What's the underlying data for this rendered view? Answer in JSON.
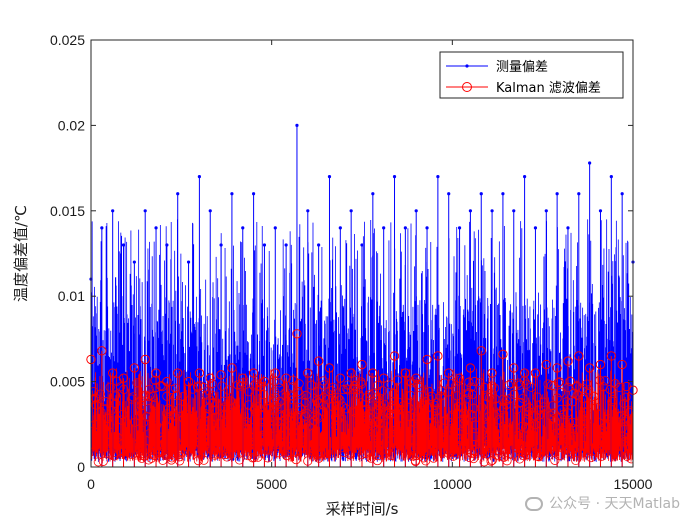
{
  "chart_data": {
    "type": "line",
    "xlabel": "采样时间/s",
    "ylabel": "温度偏差值/℃",
    "xlim": [
      0,
      15000
    ],
    "ylim": [
      0,
      0.025
    ],
    "xticks": [
      "0",
      "5000",
      "10000",
      "15000"
    ],
    "yticks": [
      "0",
      "0.005",
      "0.01",
      "0.015",
      "0.02",
      "0.025"
    ],
    "grid": false,
    "legend_position": "top-right",
    "series": [
      {
        "name": "测量偏差",
        "color": "#0000ff",
        "marker": "point",
        "x": [
          0,
          300,
          600,
          900,
          1200,
          1500,
          1800,
          2100,
          2400,
          2700,
          3000,
          3300,
          3600,
          3900,
          4200,
          4500,
          4800,
          5100,
          5400,
          5700,
          6000,
          6300,
          6600,
          6900,
          7200,
          7500,
          7800,
          8100,
          8400,
          8700,
          9000,
          9300,
          9600,
          9900,
          10200,
          10500,
          10800,
          11100,
          11400,
          11700,
          12000,
          12300,
          12600,
          12900,
          13200,
          13500,
          13800,
          14100,
          14400,
          14700,
          15000
        ],
        "y": [
          0.011,
          0.014,
          0.015,
          0.013,
          0.012,
          0.015,
          0.014,
          0.013,
          0.016,
          0.012,
          0.017,
          0.015,
          0.013,
          0.016,
          0.014,
          0.016,
          0.013,
          0.014,
          0.013,
          0.02,
          0.015,
          0.013,
          0.017,
          0.014,
          0.015,
          0.013,
          0.016,
          0.014,
          0.017,
          0.014,
          0.015,
          0.014,
          0.017,
          0.016,
          0.014,
          0.015,
          0.016,
          0.015,
          0.016,
          0.015,
          0.017,
          0.014,
          0.015,
          0.016,
          0.014,
          0.016,
          0.0178,
          0.015,
          0.017,
          0.016,
          0.012
        ]
      },
      {
        "name": "Kalman 滤波偏差",
        "color": "#ff0000",
        "marker": "circle",
        "x": [
          0,
          300,
          600,
          900,
          1200,
          1500,
          1800,
          2100,
          2400,
          2700,
          3000,
          3300,
          3600,
          3900,
          4200,
          4500,
          4800,
          5100,
          5400,
          5700,
          6000,
          6300,
          6600,
          6900,
          7200,
          7500,
          7800,
          8100,
          8400,
          8700,
          9000,
          9300,
          9600,
          9900,
          10200,
          10500,
          10800,
          11100,
          11400,
          11700,
          12000,
          12300,
          12600,
          12900,
          13200,
          13500,
          13800,
          14100,
          14400,
          14700,
          15000
        ],
        "y": [
          0.0063,
          0.0068,
          0.0055,
          0.0052,
          0.0058,
          0.0063,
          0.0055,
          0.005,
          0.0055,
          0.005,
          0.0055,
          0.0052,
          0.0054,
          0.0058,
          0.0052,
          0.0055,
          0.005,
          0.0055,
          0.0052,
          0.0078,
          0.0055,
          0.0062,
          0.0058,
          0.0052,
          0.0055,
          0.006,
          0.0055,
          0.0052,
          0.0065,
          0.0055,
          0.0052,
          0.0063,
          0.0065,
          0.0055,
          0.0052,
          0.0058,
          0.0068,
          0.0055,
          0.0066,
          0.0058,
          0.0055,
          0.0055,
          0.006,
          0.0058,
          0.0062,
          0.0065,
          0.0058,
          0.006,
          0.0065,
          0.006,
          0.0045
        ]
      }
    ]
  },
  "watermark": "公众号 · 天天Matlab"
}
